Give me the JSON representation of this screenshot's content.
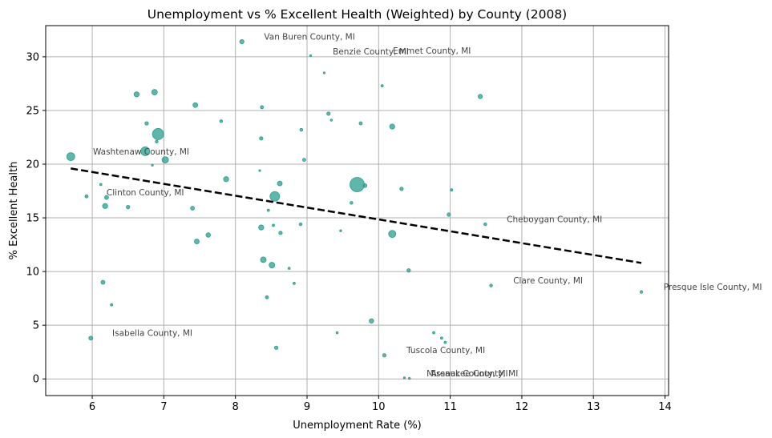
{
  "chart_data": {
    "type": "scatter",
    "title": "Unemployment vs % Excellent Health (Weighted) by County (2008)",
    "xlabel": "Unemployment Rate (%)",
    "ylabel": "% Excellent Health",
    "xlim": [
      5.35,
      14.05
    ],
    "ylim": [
      -1.55,
      32.9
    ],
    "xticks": [
      6,
      7,
      8,
      9,
      10,
      11,
      12,
      13,
      14
    ],
    "yticks": [
      0,
      5,
      10,
      15,
      20,
      25,
      30
    ],
    "grid": true,
    "marker_color": "#2a9d8f",
    "trend_line": {
      "style": "dashed",
      "color": "#000000",
      "x": [
        5.7,
        13.67
      ],
      "y": [
        19.6,
        10.8
      ]
    },
    "points": [
      {
        "x": 5.7,
        "y": 20.7,
        "s": 5
      },
      {
        "x": 5.92,
        "y": 17.0,
        "s": 2
      },
      {
        "x": 5.98,
        "y": 3.8,
        "s": 2.5
      },
      {
        "x": 6.12,
        "y": 18.1,
        "s": 1.4
      },
      {
        "x": 6.15,
        "y": 9.0,
        "s": 2.5
      },
      {
        "x": 6.18,
        "y": 16.1,
        "s": 3.2
      },
      {
        "x": 6.2,
        "y": 16.9,
        "s": 2.5
      },
      {
        "x": 6.27,
        "y": 6.9,
        "s": 1.5
      },
      {
        "x": 6.5,
        "y": 16.0,
        "s": 2.2
      },
      {
        "x": 6.62,
        "y": 26.5,
        "s": 3.2
      },
      {
        "x": 6.74,
        "y": 21.2,
        "s": 5.5
      },
      {
        "x": 6.76,
        "y": 23.8,
        "s": 2.2
      },
      {
        "x": 6.84,
        "y": 19.9,
        "s": 1.2
      },
      {
        "x": 6.87,
        "y": 26.7,
        "s": 3.5
      },
      {
        "x": 6.9,
        "y": 22.1,
        "s": 1.8
      },
      {
        "x": 6.92,
        "y": 22.8,
        "s": 7
      },
      {
        "x": 7.02,
        "y": 20.4,
        "s": 4
      },
      {
        "x": 7.4,
        "y": 15.9,
        "s": 2.4
      },
      {
        "x": 7.44,
        "y": 25.5,
        "s": 3
      },
      {
        "x": 7.46,
        "y": 12.8,
        "s": 3
      },
      {
        "x": 7.62,
        "y": 13.4,
        "s": 2.8
      },
      {
        "x": 7.8,
        "y": 24.0,
        "s": 1.8
      },
      {
        "x": 7.87,
        "y": 18.6,
        "s": 3.2
      },
      {
        "x": 8.09,
        "y": 31.4,
        "s": 2.7
      },
      {
        "x": 8.34,
        "y": 19.4,
        "s": 1.2
      },
      {
        "x": 8.36,
        "y": 22.4,
        "s": 2.2
      },
      {
        "x": 8.36,
        "y": 14.1,
        "s": 3.2
      },
      {
        "x": 8.37,
        "y": 25.3,
        "s": 2
      },
      {
        "x": 8.39,
        "y": 11.1,
        "s": 3.5
      },
      {
        "x": 8.44,
        "y": 7.6,
        "s": 2
      },
      {
        "x": 8.46,
        "y": 15.7,
        "s": 1.5
      },
      {
        "x": 8.51,
        "y": 10.6,
        "s": 3.5
      },
      {
        "x": 8.53,
        "y": 14.3,
        "s": 1.5
      },
      {
        "x": 8.55,
        "y": 17.0,
        "s": 6
      },
      {
        "x": 8.57,
        "y": 2.9,
        "s": 2.2
      },
      {
        "x": 8.62,
        "y": 18.2,
        "s": 3
      },
      {
        "x": 8.63,
        "y": 13.6,
        "s": 2.2
      },
      {
        "x": 8.75,
        "y": 10.3,
        "s": 1.4
      },
      {
        "x": 8.82,
        "y": 8.9,
        "s": 1.5
      },
      {
        "x": 8.91,
        "y": 14.4,
        "s": 1.8
      },
      {
        "x": 8.92,
        "y": 23.2,
        "s": 1.8
      },
      {
        "x": 8.96,
        "y": 20.4,
        "s": 2
      },
      {
        "x": 9.05,
        "y": 30.1,
        "s": 1.2
      },
      {
        "x": 9.24,
        "y": 28.5,
        "s": 1.2
      },
      {
        "x": 9.3,
        "y": 24.7,
        "s": 2.2
      },
      {
        "x": 9.34,
        "y": 24.1,
        "s": 1.3
      },
      {
        "x": 9.42,
        "y": 4.3,
        "s": 1.4
      },
      {
        "x": 9.47,
        "y": 13.8,
        "s": 1.3
      },
      {
        "x": 9.62,
        "y": 16.4,
        "s": 1.8
      },
      {
        "x": 9.7,
        "y": 18.1,
        "s": 9
      },
      {
        "x": 9.75,
        "y": 23.8,
        "s": 2
      },
      {
        "x": 9.81,
        "y": 18.0,
        "s": 2.4
      },
      {
        "x": 9.9,
        "y": 5.4,
        "s": 2.8
      },
      {
        "x": 10.05,
        "y": 27.3,
        "s": 1.5
      },
      {
        "x": 10.08,
        "y": 2.2,
        "s": 2.2
      },
      {
        "x": 10.19,
        "y": 13.5,
        "s": 4.5
      },
      {
        "x": 10.19,
        "y": 23.5,
        "s": 3.2
      },
      {
        "x": 10.32,
        "y": 17.7,
        "s": 2.2
      },
      {
        "x": 10.36,
        "y": 0.1,
        "s": 1.2
      },
      {
        "x": 10.42,
        "y": 10.1,
        "s": 2.2
      },
      {
        "x": 10.43,
        "y": 0.05,
        "s": 1.3
      },
      {
        "x": 10.77,
        "y": 4.3,
        "s": 1.5
      },
      {
        "x": 10.88,
        "y": 3.8,
        "s": 1.5
      },
      {
        "x": 10.93,
        "y": 3.4,
        "s": 1.5
      },
      {
        "x": 10.98,
        "y": 15.3,
        "s": 2.2
      },
      {
        "x": 11.02,
        "y": 17.6,
        "s": 1.5
      },
      {
        "x": 11.42,
        "y": 26.3,
        "s": 2.7
      },
      {
        "x": 11.49,
        "y": 14.4,
        "s": 1.8
      },
      {
        "x": 11.57,
        "y": 8.7,
        "s": 1.8
      },
      {
        "x": 13.67,
        "y": 8.1,
        "s": 1.7
      }
    ],
    "annotations": [
      {
        "text": "Van Buren County, MI",
        "x": 8.4,
        "y": 31.6
      },
      {
        "text": "Benzie County, MI",
        "x": 9.36,
        "y": 30.2
      },
      {
        "text": "Emmet County, MI",
        "x": 10.2,
        "y": 30.3
      },
      {
        "text": "Washtenaw County, MI",
        "x": 6.01,
        "y": 20.9
      },
      {
        "text": "Clinton County, MI",
        "x": 6.2,
        "y": 17.1
      },
      {
        "text": "Cheboygan County, MI",
        "x": 11.79,
        "y": 14.6
      },
      {
        "text": "Clare County, MI",
        "x": 11.88,
        "y": 8.9
      },
      {
        "text": "Presque Isle County, MI",
        "x": 13.98,
        "y": 8.3
      },
      {
        "text": "Isabella County, MI",
        "x": 6.28,
        "y": 4.0
      },
      {
        "text": "Tuscola County, MI",
        "x": 10.39,
        "y": 2.4
      },
      {
        "text": "Missaukee County, MI",
        "x": 10.67,
        "y": 0.25
      },
      {
        "text": "Arenac County, MI",
        "x": 10.73,
        "y": 0.25
      }
    ]
  }
}
